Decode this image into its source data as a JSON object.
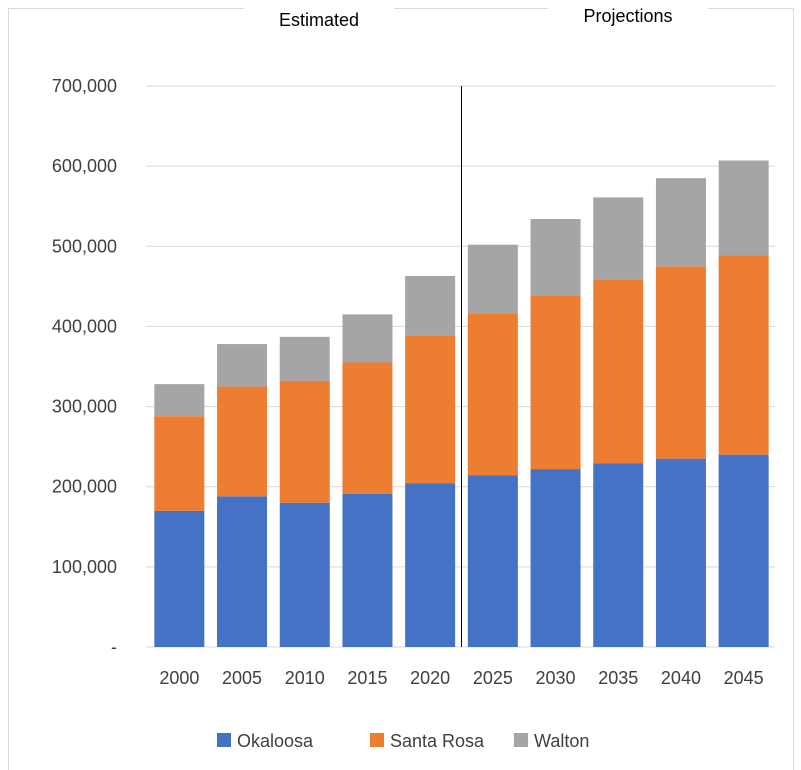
{
  "header": {
    "left_label": "Estimated",
    "right_label": "Projections"
  },
  "colors": {
    "Okaloosa": "#4472c4",
    "Santa Rosa": "#ed7d31",
    "Walton": "#a5a5a5",
    "gridline": "#d9d9d9",
    "divider": "#000000",
    "text": "#404040"
  },
  "chart_data": {
    "type": "bar",
    "stacked": true,
    "categories": [
      "2000",
      "2005",
      "2010",
      "2015",
      "2020",
      "2025",
      "2030",
      "2035",
      "2040",
      "2045"
    ],
    "series": [
      {
        "name": "Okaloosa",
        "values": [
          170000,
          188000,
          180000,
          191000,
          204000,
          214000,
          222000,
          229000,
          235000,
          240000
        ]
      },
      {
        "name": "Santa Rosa",
        "values": [
          118000,
          137000,
          152000,
          164000,
          185000,
          202000,
          217000,
          229000,
          240000,
          249000
        ]
      },
      {
        "name": "Walton",
        "values": [
          40000,
          53000,
          55000,
          60000,
          74000,
          86000,
          95000,
          103000,
          110000,
          118000
        ]
      }
    ],
    "yticks": [
      "-",
      "100,000",
      "200,000",
      "300,000",
      "400,000",
      "500,000",
      "600,000",
      "700,000"
    ],
    "ylim": [
      0,
      700000
    ],
    "grid": true,
    "legend_position": "bottom",
    "sections": [
      "Estimated",
      "Projections"
    ],
    "section_divider_after": "2020"
  }
}
